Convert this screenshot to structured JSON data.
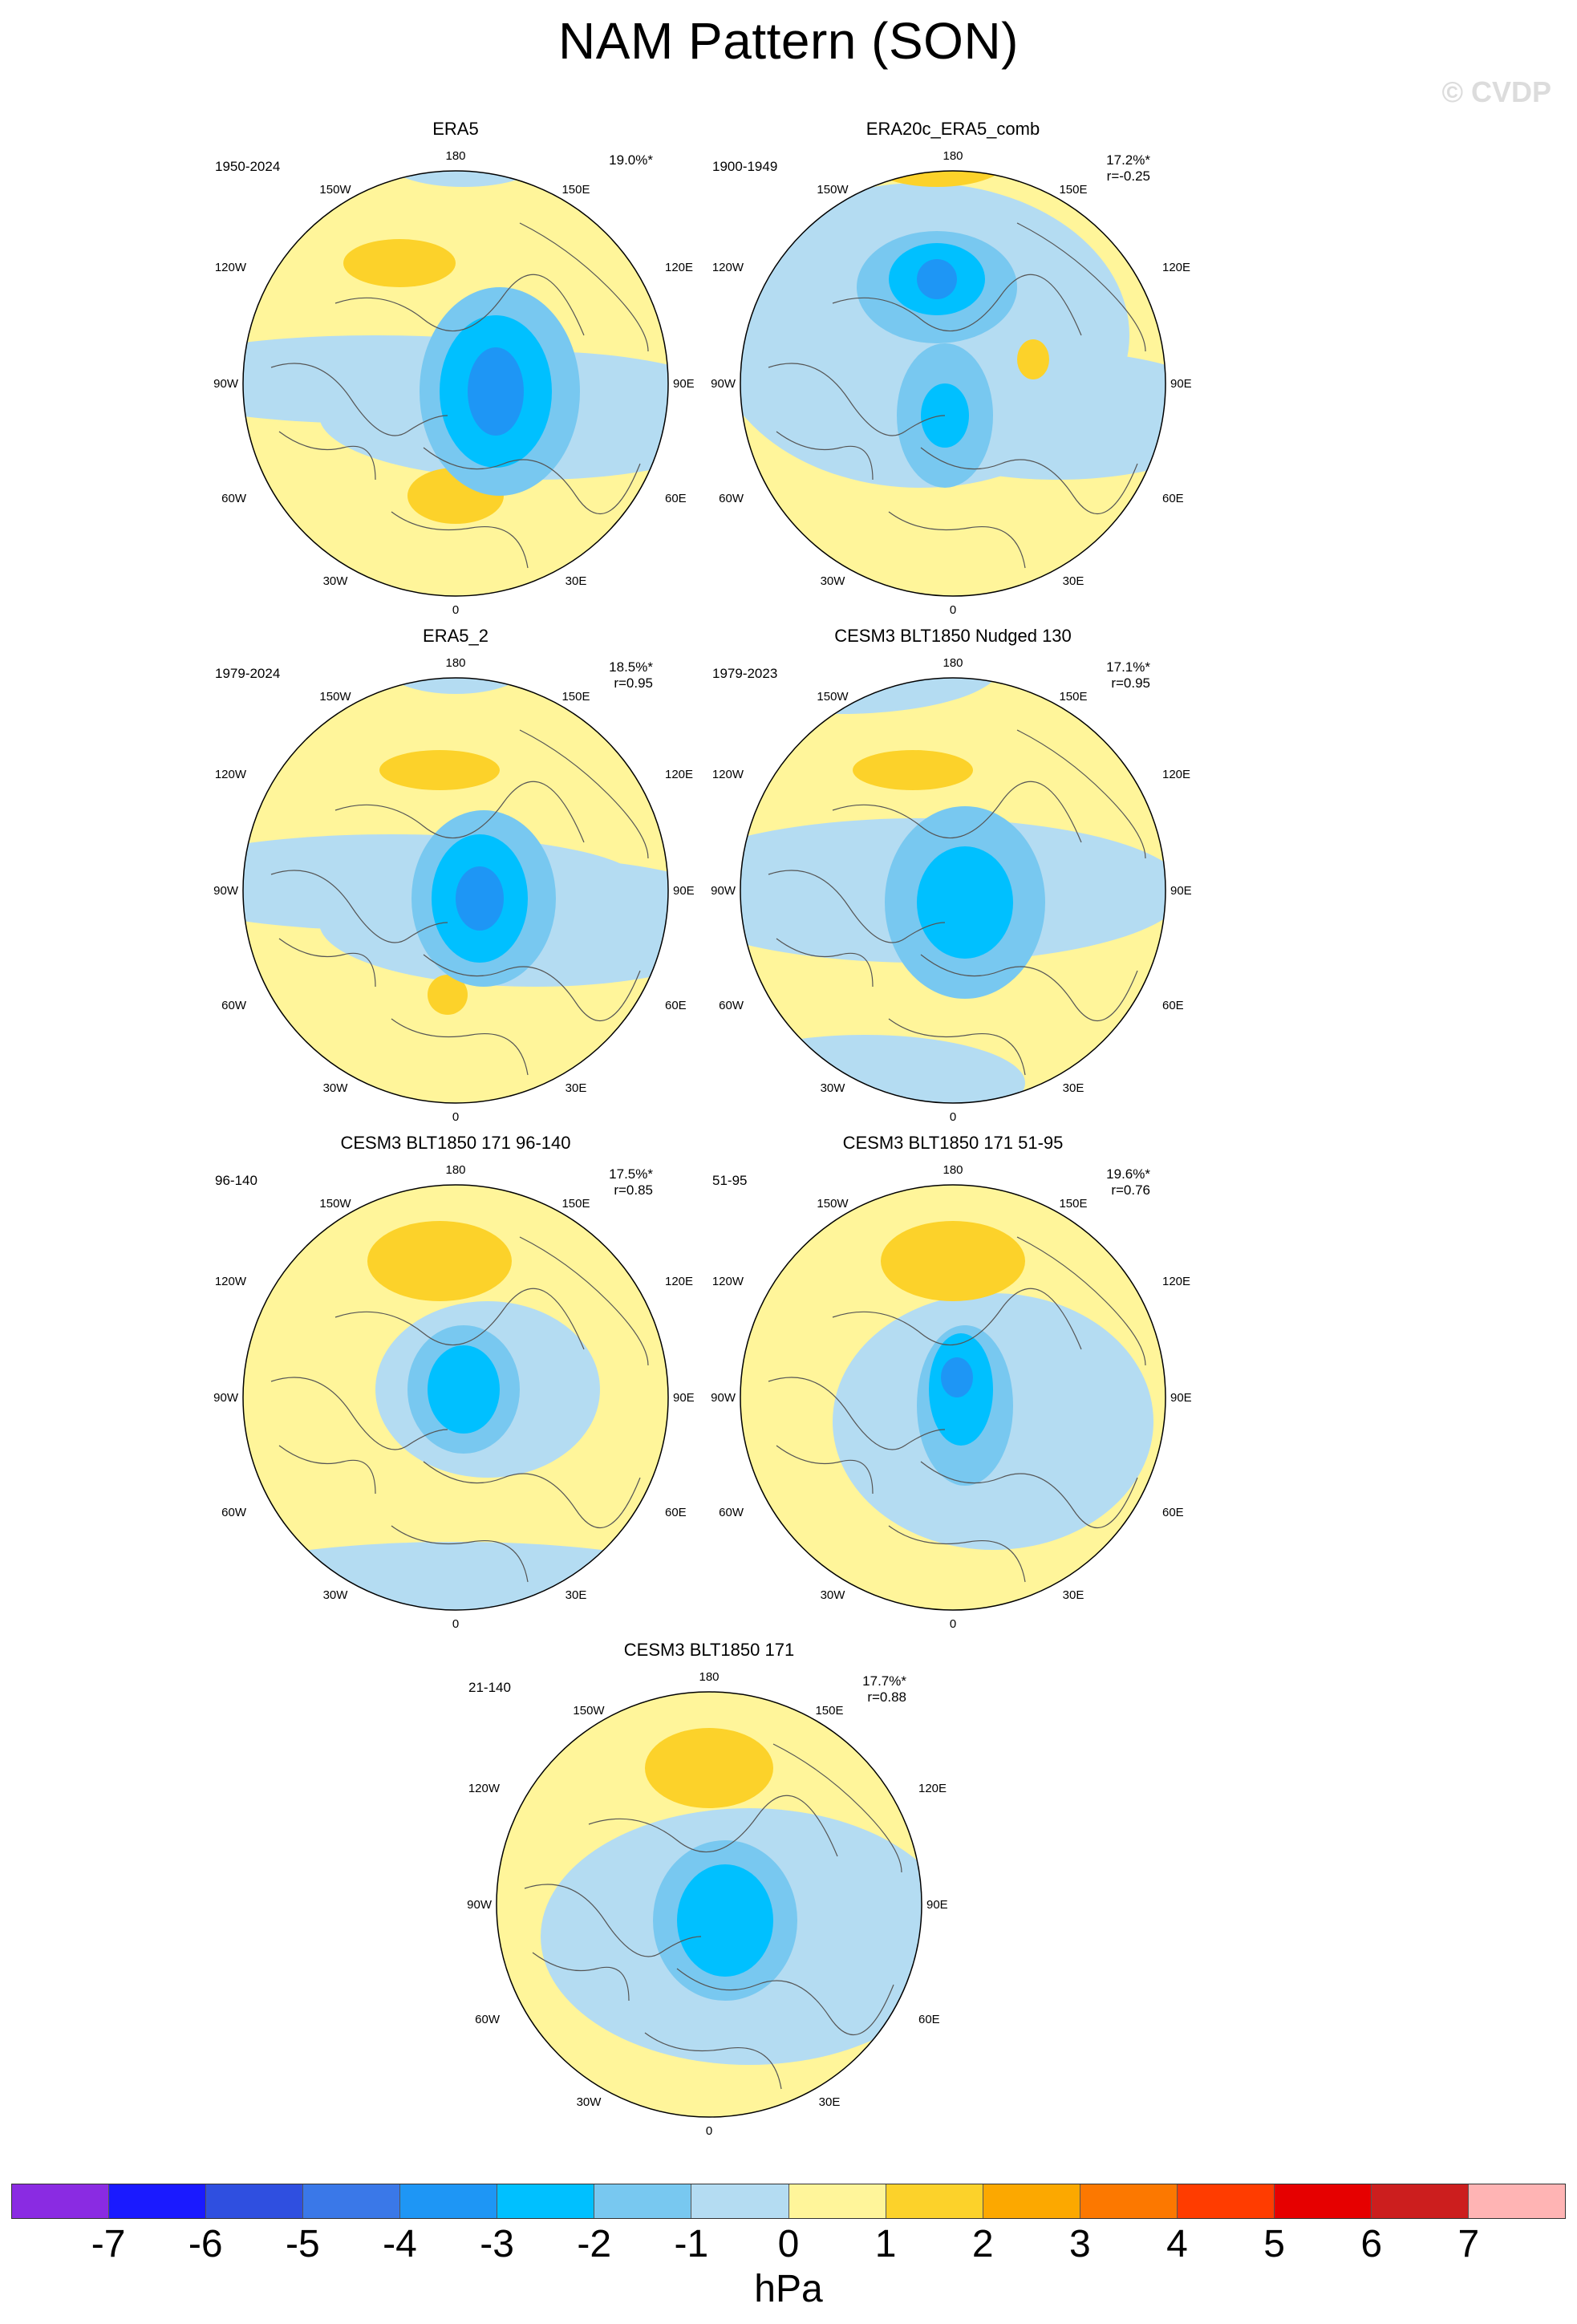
{
  "figure": {
    "title": "NAM Pattern (SON)",
    "watermark": "© CVDP"
  },
  "map_labels": {
    "lon_top": "180",
    "lon_150w": "150W",
    "lon_150e": "150E",
    "lon_120w": "120W",
    "lon_120e": "120E",
    "lon_90w": "90W",
    "lon_90e": "90E",
    "lon_60w": "60W",
    "lon_60e": "60E",
    "lon_30w": "30W",
    "lon_30e": "30E",
    "lon_bottom": "0"
  },
  "panels": [
    {
      "title": "ERA5",
      "period": "1950-2024",
      "stats_line1": "19.0%*",
      "stats_line2": ""
    },
    {
      "title": "ERA20c_ERA5_comb",
      "period": "1900-1949",
      "stats_line1": "17.2%*",
      "stats_line2": "r=-0.25"
    },
    {
      "title": "ERA5_2",
      "period": "1979-2024",
      "stats_line1": "18.5%*",
      "stats_line2": "r=0.95"
    },
    {
      "title": "CESM3 BLT1850 Nudged 130",
      "period": "1979-2023",
      "stats_line1": "17.1%*",
      "stats_line2": "r=0.95"
    },
    {
      "title": "CESM3 BLT1850 171 96-140",
      "period": "96-140",
      "stats_line1": "17.5%*",
      "stats_line2": "r=0.85"
    },
    {
      "title": "CESM3 BLT1850 171 51-95",
      "period": "51-95",
      "stats_line1": "19.6%*",
      "stats_line2": "r=0.76"
    },
    {
      "title": "CESM3 BLT1850 171",
      "period": "21-140",
      "stats_line1": "17.7%*",
      "stats_line2": "r=0.88"
    }
  ],
  "colorbar": {
    "unit": "hPa",
    "tick_labels": [
      "-7",
      "-6",
      "-5",
      "-4",
      "-3",
      "-2",
      "-1",
      "0",
      "1",
      "2",
      "3",
      "4",
      "5",
      "6",
      "7"
    ],
    "colors": [
      "#8a2be2",
      "#1a1aff",
      "#2f4fe0",
      "#3a78e8",
      "#1e96f5",
      "#00c0ff",
      "#78c8f0",
      "#b4dcf2",
      "#fff59a",
      "#fcd22a",
      "#fca800",
      "#fc7800",
      "#ff3c00",
      "#e60000",
      "#cc1e1e",
      "#ffb4b4"
    ]
  }
}
